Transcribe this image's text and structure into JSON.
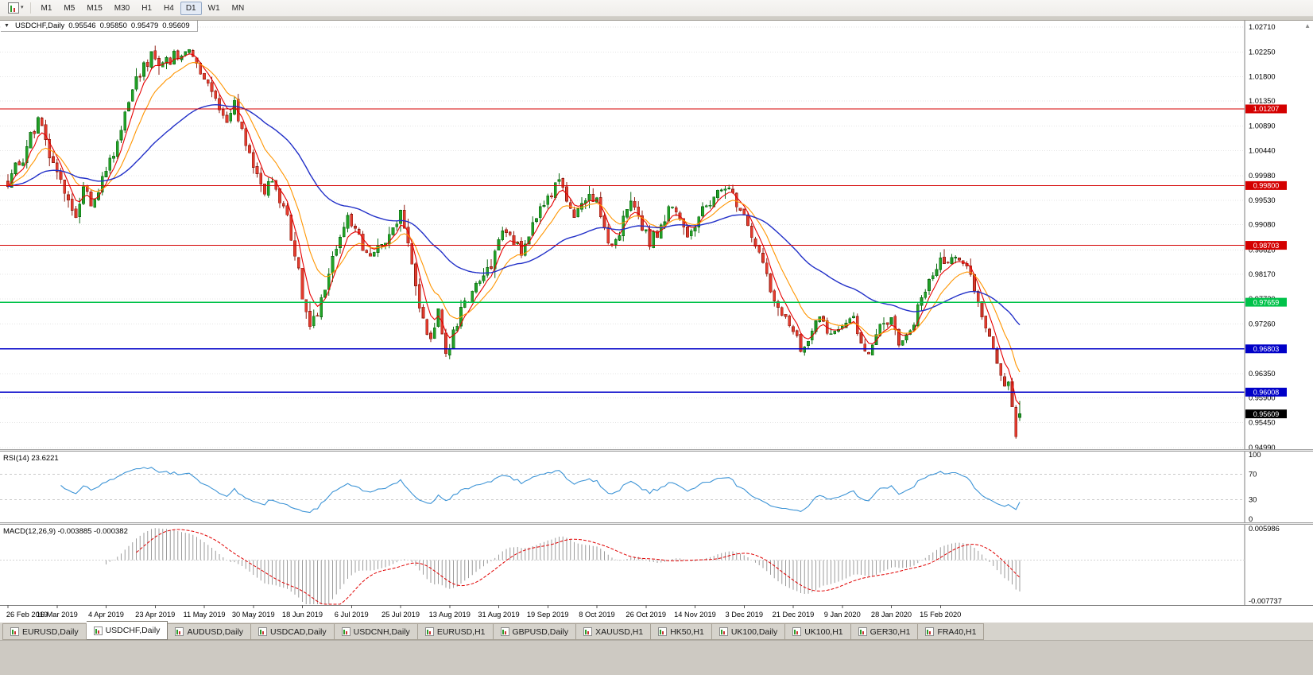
{
  "icons": {
    "chart_menu": "▼",
    "caret_down": "▾",
    "scroll_up": "▲"
  },
  "toolbar": {
    "timeframes": [
      {
        "label": "M1",
        "active": false
      },
      {
        "label": "M5",
        "active": false
      },
      {
        "label": "M15",
        "active": false
      },
      {
        "label": "M30",
        "active": false
      },
      {
        "label": "H1",
        "active": false
      },
      {
        "label": "H4",
        "active": false
      },
      {
        "label": "D1",
        "active": true
      },
      {
        "label": "W1",
        "active": false
      },
      {
        "label": "MN",
        "active": false
      }
    ]
  },
  "chart_header": {
    "symbol": "USDCHF,Daily",
    "open": "0.95546",
    "high": "0.95850",
    "low": "0.95479",
    "close": "0.95609"
  },
  "chart_data": {
    "type": "candlestick",
    "title": "USDCHF,Daily",
    "symbol": "USDCHF",
    "timeframe": "Daily",
    "up_color": "#22a127",
    "down_color": "#e23b2e",
    "price_axis": {
      "max": 1.0271,
      "min": 0.9499,
      "labels": [
        "1.02710",
        "1.02250",
        "1.01800",
        "1.01350",
        "1.00890",
        "1.00440",
        "0.99980",
        "0.99530",
        "0.99080",
        "0.98620",
        "0.98170",
        "0.97720",
        "0.97260",
        "0.96810",
        "0.96350",
        "0.95900",
        "0.95450",
        "0.94990"
      ]
    },
    "date_labels": [
      "26 Feb 2019",
      "16 Mar 2019",
      "4 Apr 2019",
      "23 Apr 2019",
      "11 May 2019",
      "30 May 2019",
      "18 Jun 2019",
      "6 Jul 2019",
      "25 Jul 2019",
      "13 Aug 2019",
      "31 Aug 2019",
      "19 Sep 2019",
      "8 Oct 2019",
      "26 Oct 2019",
      "14 Nov 2019",
      "3 Dec 2019",
      "21 Dec 2019",
      "9 Jan 2020",
      "28 Jan 2020",
      "15 Feb 2020"
    ],
    "candles_per_label": 13,
    "num_candles": 269,
    "last_candle": {
      "open": 0.95546,
      "high": 0.9585,
      "low": 0.95479,
      "close": 0.95609
    },
    "price_path_anchors": [
      [
        0,
        0.999
      ],
      [
        2,
        1.0015
      ],
      [
        4,
        1.003
      ],
      [
        6,
        1.007
      ],
      [
        8,
        1.01
      ],
      [
        10,
        1.006
      ],
      [
        12,
        1.002
      ],
      [
        14,
        0.999
      ],
      [
        16,
        0.995
      ],
      [
        18,
        0.993
      ],
      [
        20,
        0.9975
      ],
      [
        22,
        0.995
      ],
      [
        24,
        0.9975
      ],
      [
        26,
        1.0005
      ],
      [
        28,
        1.004
      ],
      [
        30,
        1.008
      ],
      [
        32,
        1.013
      ],
      [
        34,
        1.017
      ],
      [
        36,
        1.02
      ],
      [
        38,
        1.0215
      ],
      [
        40,
        1.019
      ],
      [
        42,
        1.0205
      ],
      [
        44,
        1.022
      ],
      [
        46,
        1.021
      ],
      [
        48,
        1.0225
      ],
      [
        50,
        1.0195
      ],
      [
        52,
        1.017
      ],
      [
        54,
        1.0145
      ],
      [
        56,
        1.0125
      ],
      [
        58,
        1.0105
      ],
      [
        60,
        1.0125
      ],
      [
        62,
        1.0085
      ],
      [
        64,
        1.0045
      ],
      [
        66,
        1.0
      ],
      [
        68,
        0.996
      ],
      [
        70,
        0.9995
      ],
      [
        72,
        0.996
      ],
      [
        74,
        0.992
      ],
      [
        76,
        0.986
      ],
      [
        78,
        0.978
      ],
      [
        80,
        0.972
      ],
      [
        82,
        0.9745
      ],
      [
        84,
        0.98
      ],
      [
        86,
        0.985
      ],
      [
        88,
        0.9885
      ],
      [
        90,
        0.9915
      ],
      [
        92,
        0.99
      ],
      [
        94,
        0.9865
      ],
      [
        96,
        0.985
      ],
      [
        98,
        0.988
      ],
      [
        100,
        0.9865
      ],
      [
        102,
        0.9895
      ],
      [
        104,
        0.993
      ],
      [
        106,
        0.988
      ],
      [
        108,
        0.98
      ],
      [
        110,
        0.973
      ],
      [
        112,
        0.9705
      ],
      [
        114,
        0.9745
      ],
      [
        116,
        0.967
      ],
      [
        118,
        0.9715
      ],
      [
        120,
        0.9745
      ],
      [
        122,
        0.9775
      ],
      [
        124,
        0.9795
      ],
      [
        126,
        0.9815
      ],
      [
        128,
        0.984
      ],
      [
        130,
        0.988
      ],
      [
        132,
        0.9905
      ],
      [
        134,
        0.988
      ],
      [
        136,
        0.986
      ],
      [
        138,
        0.9895
      ],
      [
        140,
        0.9925
      ],
      [
        142,
        0.9945
      ],
      [
        144,
        0.996
      ],
      [
        146,
        0.999
      ],
      [
        148,
        0.995
      ],
      [
        150,
        0.992
      ],
      [
        152,
        0.995
      ],
      [
        154,
        0.997
      ],
      [
        156,
        0.995
      ],
      [
        158,
        0.9905
      ],
      [
        160,
        0.9865
      ],
      [
        162,
        0.9895
      ],
      [
        164,
        0.993
      ],
      [
        166,
        0.995
      ],
      [
        168,
        0.99
      ],
      [
        170,
        0.9875
      ],
      [
        172,
        0.9895
      ],
      [
        174,
        0.9925
      ],
      [
        176,
        0.994
      ],
      [
        178,
        0.991
      ],
      [
        180,
        0.989
      ],
      [
        182,
        0.9905
      ],
      [
        184,
        0.993
      ],
      [
        186,
        0.995
      ],
      [
        188,
        0.997
      ],
      [
        190,
        0.9985
      ],
      [
        192,
        0.9965
      ],
      [
        194,
        0.994
      ],
      [
        196,
        0.99
      ],
      [
        198,
        0.987
      ],
      [
        200,
        0.9835
      ],
      [
        202,
        0.9795
      ],
      [
        204,
        0.9765
      ],
      [
        206,
        0.974
      ],
      [
        208,
        0.9715
      ],
      [
        210,
        0.9675
      ],
      [
        212,
        0.969
      ],
      [
        214,
        0.972
      ],
      [
        216,
        0.9735
      ],
      [
        218,
        0.97
      ],
      [
        220,
        0.9715
      ],
      [
        222,
        0.9725
      ],
      [
        224,
        0.9735
      ],
      [
        226,
        0.969
      ],
      [
        228,
        0.9665
      ],
      [
        230,
        0.971
      ],
      [
        232,
        0.9725
      ],
      [
        234,
        0.9735
      ],
      [
        236,
        0.9685
      ],
      [
        238,
        0.9705
      ],
      [
        240,
        0.9735
      ],
      [
        242,
        0.9765
      ],
      [
        244,
        0.9805
      ],
      [
        246,
        0.9835
      ],
      [
        248,
        0.9845
      ],
      [
        250,
        0.9852
      ],
      [
        252,
        0.9845
      ],
      [
        254,
        0.9825
      ],
      [
        256,
        0.979
      ],
      [
        258,
        0.9735
      ],
      [
        260,
        0.97
      ],
      [
        262,
        0.9645
      ],
      [
        264,
        0.96
      ],
      [
        265,
        0.963
      ],
      [
        266,
        0.9585
      ],
      [
        267,
        0.9515
      ],
      [
        268,
        0.95609
      ]
    ],
    "moving_averages": [
      {
        "name": "fast",
        "period": 5,
        "color": "#e60000"
      },
      {
        "name": "medium",
        "period": 12,
        "color": "#ff9500"
      },
      {
        "name": "slow",
        "period": 45,
        "color": "#2230c8"
      }
    ],
    "horizontal_lines": [
      {
        "price": 1.01207,
        "label": "1.01207",
        "color": "#d40000",
        "width": 1.2
      },
      {
        "price": 0.998,
        "label": "0.99800",
        "color": "#d40000",
        "width": 1.2
      },
      {
        "price": 0.98703,
        "label": "0.98703",
        "color": "#d40000",
        "width": 1.2
      },
      {
        "price": 0.97659,
        "label": "0.97659",
        "color": "#00c24a",
        "width": 1.6
      },
      {
        "price": 0.96803,
        "label": "0.96803",
        "color": "#0000c8",
        "width": 1.6
      },
      {
        "price": 0.96008,
        "label": "0.96008",
        "color": "#0000c8",
        "width": 1.8
      }
    ],
    "current_price": {
      "value": 0.95609,
      "label": "0.95609",
      "bg": "#000000"
    },
    "indicators": [
      {
        "name": "RSI",
        "label": "RSI(14) 23.6221",
        "period": 14,
        "value": 23.6221,
        "levels": [
          "100",
          "70",
          "30",
          "0"
        ],
        "line_color": "#3d94d6"
      },
      {
        "name": "MACD",
        "label": "MACD(12,26,9) -0.003885 -0.000382",
        "fast": 12,
        "slow": 26,
        "signal": 9,
        "macd_value": -0.003885,
        "signal_value": -0.000382,
        "axis_top": "0.005986",
        "axis_bottom": "-0.007737",
        "axis_max": 0.005986,
        "axis_min": -0.007737,
        "histogram_color": "#9b9b9b",
        "signal_color": "#e00000"
      }
    ],
    "render_hints": {
      "seed": 7,
      "close_noise": 0.0024,
      "wick_extra": 0.0019
    }
  },
  "bottom_tabs": [
    {
      "label": "EURUSD,Daily",
      "active": false
    },
    {
      "label": "USDCHF,Daily",
      "active": true
    },
    {
      "label": "AUDUSD,Daily",
      "active": false
    },
    {
      "label": "USDCAD,Daily",
      "active": false
    },
    {
      "label": "USDCNH,Daily",
      "active": false
    },
    {
      "label": "EURUSD,H1",
      "active": false
    },
    {
      "label": "GBPUSD,Daily",
      "active": false
    },
    {
      "label": "XAUUSD,H1",
      "active": false
    },
    {
      "label": "HK50,H1",
      "active": false
    },
    {
      "label": "UK100,Daily",
      "active": false
    },
    {
      "label": "UK100,H1",
      "active": false
    },
    {
      "label": "GER30,H1",
      "active": false
    },
    {
      "label": "FRA40,H1",
      "active": false
    }
  ]
}
